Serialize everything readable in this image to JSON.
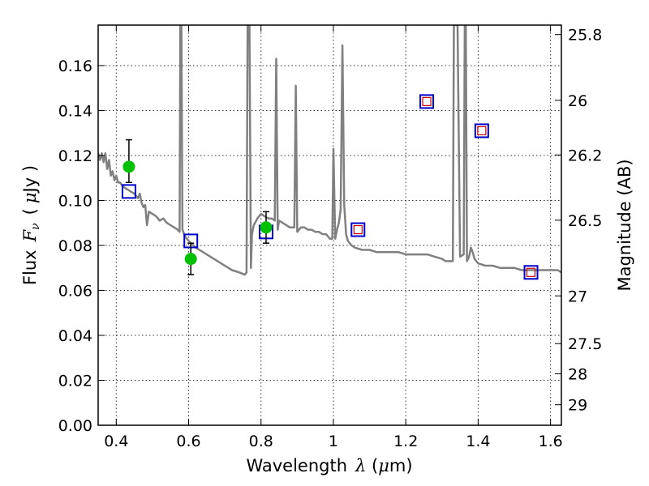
{
  "chart_data": {
    "type": "scatter",
    "xlabel": {
      "prefix": "Wavelength",
      "symbol": "λ",
      "unit_open": "(",
      "unit_greek": "μ",
      "unit_rest": "m)"
    },
    "ylabel": {
      "prefix": "Flux",
      "symbol": "F",
      "subscript": "ν",
      "unit_open": "(",
      "unit_greek": "μ",
      "unit_rest": "Jy )"
    },
    "y2label": "Magnitude (AB)",
    "xlim": [
      0.35,
      1.63
    ],
    "ylim": [
      0.0,
      0.178
    ],
    "grid": true,
    "x_ticks": [
      {
        "value": 0.4,
        "label": "0.4"
      },
      {
        "value": 0.6,
        "label": "0.6"
      },
      {
        "value": 0.8,
        "label": "0.8"
      },
      {
        "value": 1.0,
        "label": "1"
      },
      {
        "value": 1.2,
        "label": "1.2"
      },
      {
        "value": 1.4,
        "label": "1.4"
      },
      {
        "value": 1.6,
        "label": "1.6"
      }
    ],
    "y_ticks": [
      {
        "value": 0.0,
        "label": "0.00"
      },
      {
        "value": 0.02,
        "label": "0.02"
      },
      {
        "value": 0.04,
        "label": "0.04"
      },
      {
        "value": 0.06,
        "label": "0.06"
      },
      {
        "value": 0.08,
        "label": "0.08"
      },
      {
        "value": 0.1,
        "label": "0.10"
      },
      {
        "value": 0.12,
        "label": "0.12"
      },
      {
        "value": 0.14,
        "label": "0.14"
      },
      {
        "value": 0.16,
        "label": "0.16"
      }
    ],
    "y2_ticks": [
      {
        "value": 25.8,
        "label": "25.8"
      },
      {
        "value": 26.0,
        "label": "26"
      },
      {
        "value": 26.2,
        "label": "26.2"
      },
      {
        "value": 26.5,
        "label": "26.5"
      },
      {
        "value": 27.0,
        "label": "27"
      },
      {
        "value": 27.5,
        "label": "27.5"
      },
      {
        "value": 28.0,
        "label": "28"
      },
      {
        "value": 29.0,
        "label": "29"
      }
    ],
    "colors": {
      "spectrum": "#808080",
      "observed": "#00c000",
      "error_bar": "#000000",
      "model_box": "#0000cc",
      "model_box_inner": "#cc0000"
    },
    "model_spectrum": [
      [
        0.35,
        0.121
      ],
      [
        0.355,
        0.118
      ],
      [
        0.36,
        0.121
      ],
      [
        0.365,
        0.117
      ],
      [
        0.37,
        0.121
      ],
      [
        0.375,
        0.114
      ],
      [
        0.38,
        0.118
      ],
      [
        0.385,
        0.111
      ],
      [
        0.39,
        0.113
      ],
      [
        0.395,
        0.109
      ],
      [
        0.4,
        0.111
      ],
      [
        0.405,
        0.108
      ],
      [
        0.41,
        0.108
      ],
      [
        0.42,
        0.106
      ],
      [
        0.43,
        0.105
      ],
      [
        0.44,
        0.104
      ],
      [
        0.45,
        0.103
      ],
      [
        0.46,
        0.101
      ],
      [
        0.465,
        0.103
      ],
      [
        0.47,
        0.099
      ],
      [
        0.475,
        0.097
      ],
      [
        0.48,
        0.098
      ],
      [
        0.485,
        0.089
      ],
      [
        0.49,
        0.095
      ],
      [
        0.5,
        0.094
      ],
      [
        0.51,
        0.093
      ],
      [
        0.52,
        0.091
      ],
      [
        0.53,
        0.092
      ],
      [
        0.54,
        0.09
      ],
      [
        0.55,
        0.089
      ],
      [
        0.56,
        0.088
      ],
      [
        0.57,
        0.087
      ],
      [
        0.575,
        0.086
      ],
      [
        0.577,
        0.178
      ],
      [
        0.58,
        0.178
      ],
      [
        0.583,
        0.087
      ],
      [
        0.59,
        0.084
      ],
      [
        0.6,
        0.082
      ],
      [
        0.62,
        0.079
      ],
      [
        0.64,
        0.077
      ],
      [
        0.66,
        0.075
      ],
      [
        0.68,
        0.073
      ],
      [
        0.7,
        0.071
      ],
      [
        0.72,
        0.069
      ],
      [
        0.74,
        0.068
      ],
      [
        0.755,
        0.067
      ],
      [
        0.76,
        0.068
      ],
      [
        0.763,
        0.178
      ],
      [
        0.768,
        0.178
      ],
      [
        0.772,
        0.07
      ],
      [
        0.775,
        0.085
      ],
      [
        0.78,
        0.089
      ],
      [
        0.79,
        0.092
      ],
      [
        0.8,
        0.094
      ],
      [
        0.81,
        0.093
      ],
      [
        0.82,
        0.092
      ],
      [
        0.83,
        0.092
      ],
      [
        0.838,
        0.091
      ],
      [
        0.842,
        0.163
      ],
      [
        0.846,
        0.087
      ],
      [
        0.85,
        0.091
      ],
      [
        0.86,
        0.09
      ],
      [
        0.87,
        0.089
      ],
      [
        0.88,
        0.088
      ],
      [
        0.892,
        0.088
      ],
      [
        0.896,
        0.151
      ],
      [
        0.9,
        0.086
      ],
      [
        0.91,
        0.088
      ],
      [
        0.92,
        0.088
      ],
      [
        0.93,
        0.087
      ],
      [
        0.94,
        0.087
      ],
      [
        0.95,
        0.086
      ],
      [
        0.96,
        0.086
      ],
      [
        0.97,
        0.085
      ],
      [
        0.98,
        0.085
      ],
      [
        0.99,
        0.083
      ],
      [
        0.997,
        0.083
      ],
      [
        1.0,
        0.123
      ],
      [
        1.005,
        0.083
      ],
      [
        1.01,
        0.087
      ],
      [
        1.015,
        0.09
      ],
      [
        1.02,
        0.096
      ],
      [
        1.025,
        0.169
      ],
      [
        1.03,
        0.098
      ],
      [
        1.035,
        0.085
      ],
      [
        1.04,
        0.082
      ],
      [
        1.05,
        0.08
      ],
      [
        1.06,
        0.079
      ],
      [
        1.08,
        0.078
      ],
      [
        1.1,
        0.078
      ],
      [
        1.12,
        0.077
      ],
      [
        1.14,
        0.077
      ],
      [
        1.16,
        0.077
      ],
      [
        1.18,
        0.077
      ],
      [
        1.2,
        0.076
      ],
      [
        1.22,
        0.076
      ],
      [
        1.24,
        0.076
      ],
      [
        1.26,
        0.076
      ],
      [
        1.28,
        0.075
      ],
      [
        1.3,
        0.074
      ],
      [
        1.31,
        0.073
      ],
      [
        1.32,
        0.073
      ],
      [
        1.33,
        0.073
      ],
      [
        1.333,
        0.178
      ],
      [
        1.343,
        0.178
      ],
      [
        1.35,
        0.075
      ],
      [
        1.36,
        0.076
      ],
      [
        1.363,
        0.178
      ],
      [
        1.366,
        0.178
      ],
      [
        1.369,
        0.073
      ],
      [
        1.375,
        0.075
      ],
      [
        1.38,
        0.079
      ],
      [
        1.385,
        0.077
      ],
      [
        1.39,
        0.074
      ],
      [
        1.4,
        0.072
      ],
      [
        1.42,
        0.071
      ],
      [
        1.44,
        0.071
      ],
      [
        1.46,
        0.07
      ],
      [
        1.48,
        0.07
      ],
      [
        1.5,
        0.07
      ],
      [
        1.52,
        0.069
      ],
      [
        1.54,
        0.069
      ],
      [
        1.56,
        0.069
      ],
      [
        1.58,
        0.069
      ],
      [
        1.6,
        0.069
      ],
      [
        1.62,
        0.069
      ],
      [
        1.63,
        0.068
      ]
    ],
    "observed_points": [
      {
        "x": 0.435,
        "y": 0.115,
        "err_low": 0.108,
        "err_high": 0.127
      },
      {
        "x": 0.606,
        "y": 0.074,
        "err_low": 0.067,
        "err_high": 0.081
      },
      {
        "x": 0.814,
        "y": 0.088,
        "err_low": 0.081,
        "err_high": 0.095
      }
    ],
    "model_photometry_boxes": [
      {
        "x": 0.435,
        "y": 0.104,
        "inner": false
      },
      {
        "x": 0.606,
        "y": 0.082,
        "inner": false
      },
      {
        "x": 0.814,
        "y": 0.086,
        "inner": false
      },
      {
        "x": 1.068,
        "y": 0.087,
        "inner": true
      },
      {
        "x": 1.258,
        "y": 0.144,
        "inner": true
      },
      {
        "x": 1.41,
        "y": 0.131,
        "inner": true
      },
      {
        "x": 1.546,
        "y": 0.068,
        "inner": true
      }
    ]
  }
}
